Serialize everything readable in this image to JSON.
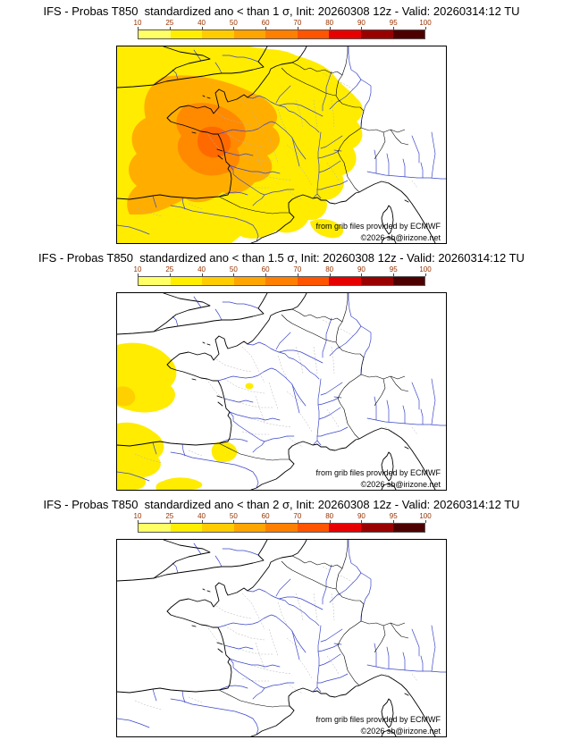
{
  "colorbar": {
    "ticks": [
      "10",
      "25",
      "40",
      "50",
      "60",
      "70",
      "80",
      "90",
      "95",
      "100"
    ],
    "colors": [
      "#ffff66",
      "#ffee00",
      "#ffcc00",
      "#ffa500",
      "#ff8000",
      "#ff5500",
      "#e60000",
      "#990000",
      "#4d0000"
    ]
  },
  "panels": [
    {
      "title": "IFS - Probas T850  standardized ano < than 1 σ, Init: 20260308 12z - Valid: 20260314:12 TU",
      "attribution": {
        "line1": "from grib files provided by ECMWF",
        "line2": "©2026 sb@irizone.net"
      }
    },
    {
      "title": "IFS - Probas T850  standardized ano < than 1.5 σ, Init: 20260308 12z - Valid: 20260314:12 TU",
      "attribution": {
        "line1": "from grib files provided by ECMWF",
        "line2": "©2026 sb@irizone.net"
      }
    },
    {
      "title": "IFS - Probas T850  standardized ano < than 2 σ, Init: 20260308 12z - Valid: 20260314:12 TU",
      "attribution": {
        "line1": "from grib files provided by ECMWF",
        "line2": "©2026 sb@irizone.net"
      }
    }
  ]
}
